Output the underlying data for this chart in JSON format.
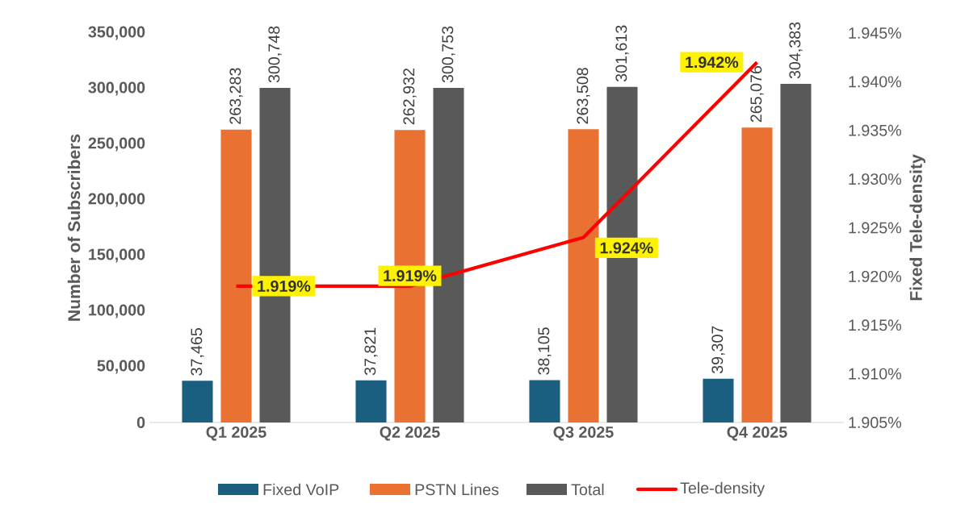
{
  "chart_data": {
    "type": "bar",
    "categories": [
      "Q1 2025",
      "Q2 2025",
      "Q3 2025",
      "Q4 2025"
    ],
    "ylabel": "Number of Subscribers",
    "y2label": "Fixed Tele-density",
    "ylim": [
      0,
      350000
    ],
    "yticks": [
      {
        "value": 0,
        "label": "0"
      },
      {
        "value": 50000,
        "label": "50,000"
      },
      {
        "value": 100000,
        "label": "100,000"
      },
      {
        "value": 150000,
        "label": "150,000"
      },
      {
        "value": 200000,
        "label": "200,000"
      },
      {
        "value": 250000,
        "label": "250,000"
      },
      {
        "value": 300000,
        "label": "300,000"
      },
      {
        "value": 350000,
        "label": "350,000"
      }
    ],
    "y2lim": [
      1.905,
      1.945
    ],
    "y2ticks": [
      {
        "value": 1.905,
        "label": "1.905%"
      },
      {
        "value": 1.91,
        "label": "1.910%"
      },
      {
        "value": 1.915,
        "label": "1.915%"
      },
      {
        "value": 1.92,
        "label": "1.920%"
      },
      {
        "value": 1.925,
        "label": "1.925%"
      },
      {
        "value": 1.93,
        "label": "1.930%"
      },
      {
        "value": 1.935,
        "label": "1.935%"
      },
      {
        "value": 1.94,
        "label": "1.940%"
      },
      {
        "value": 1.945,
        "label": "1.945%"
      }
    ],
    "legend": "bottom",
    "series": [
      {
        "name": "Fixed VoIP",
        "color": "#1a5e80",
        "values": [
          37465,
          37821,
          38105,
          39307
        ],
        "value_labels": [
          "37,465",
          "37,821",
          "38,105",
          "39,307"
        ]
      },
      {
        "name": "PSTN Lines",
        "color": "#e97132",
        "values": [
          263283,
          262932,
          263508,
          265076
        ],
        "value_labels": [
          "263,283",
          "262,932",
          "263,508",
          "265,076"
        ]
      },
      {
        "name": "Total",
        "color": "#595959",
        "values": [
          300748,
          300753,
          301613,
          304383
        ],
        "value_labels": [
          "300,748",
          "300,753",
          "301,613",
          "304,383"
        ]
      },
      {
        "name": "Tele-density",
        "type": "line",
        "axis": "y2",
        "color": "#ff0000",
        "values": [
          1.919,
          1.919,
          1.924,
          1.942
        ],
        "value_labels": [
          "1.919%",
          "1.919%",
          "1.924%",
          "1.942%"
        ]
      }
    ]
  }
}
